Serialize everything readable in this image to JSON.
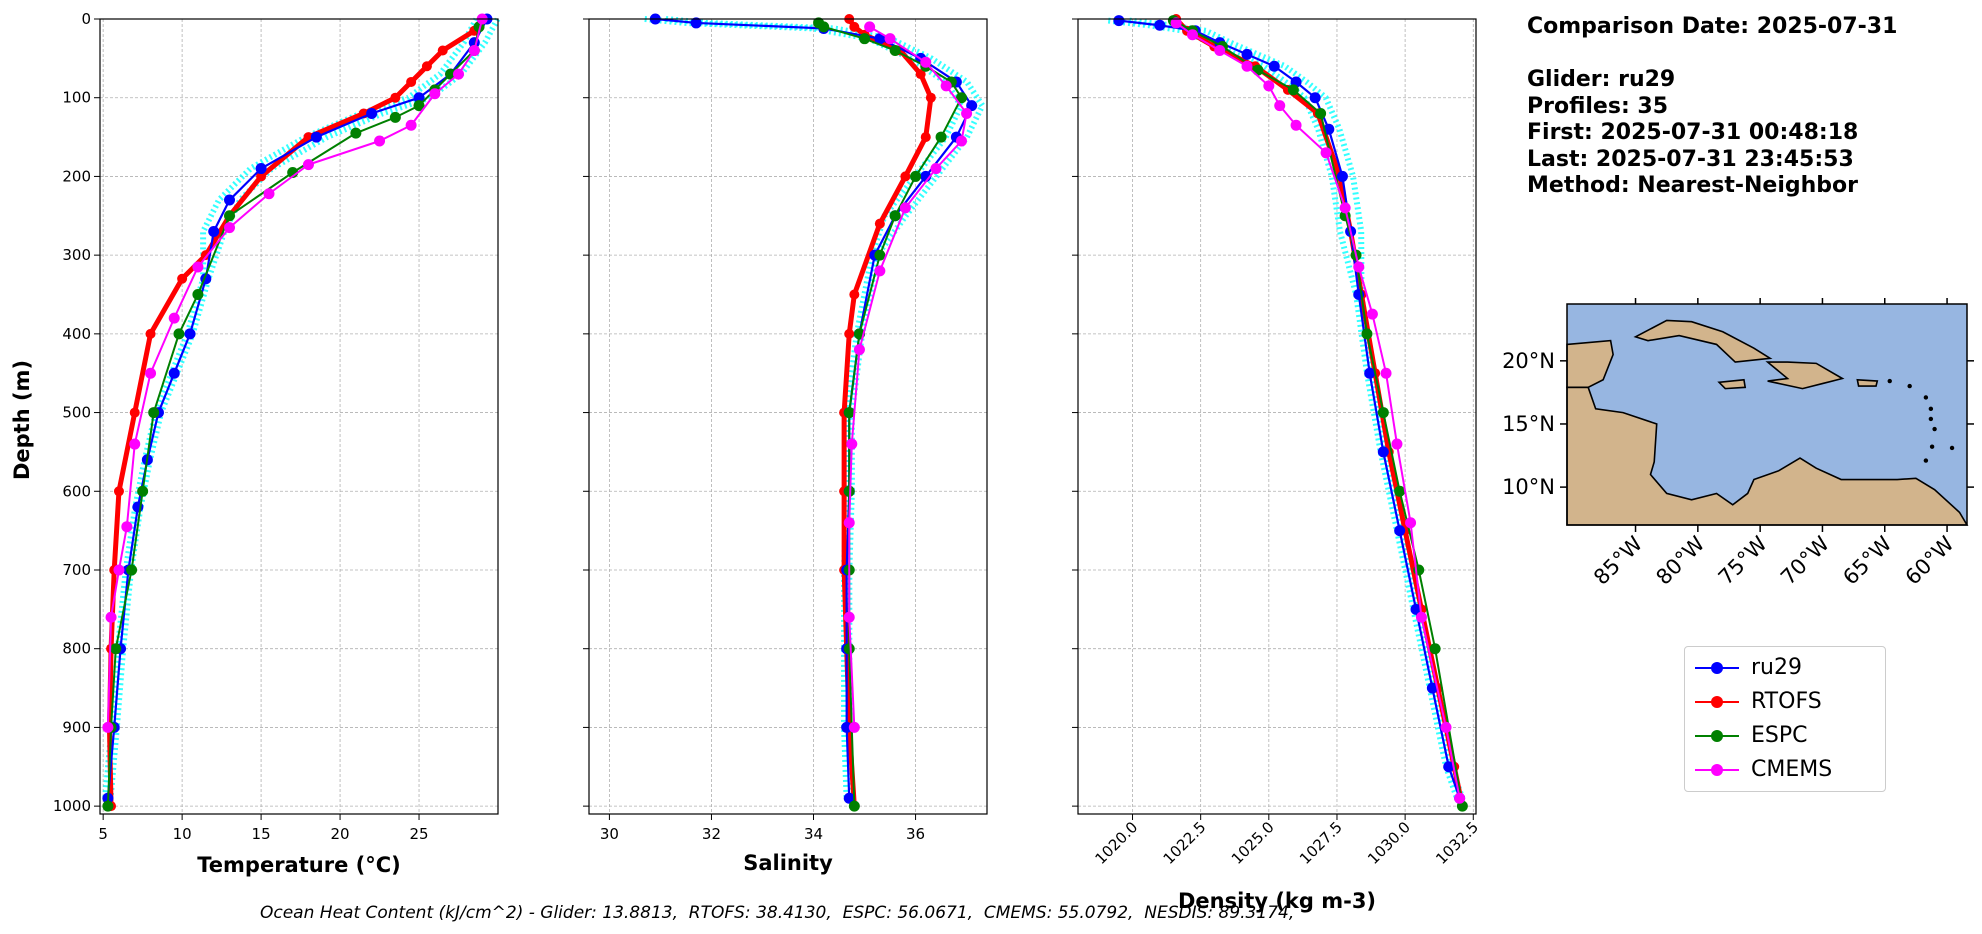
{
  "info": {
    "comparison_date": "Comparison Date: 2025-07-31",
    "glider": "Glider: ru29",
    "profiles": "Profiles: 35",
    "first": "First: 2025-07-31 00:48:18",
    "last": "Last: 2025-07-31 23:45:53",
    "method": "Method: Nearest-Neighbor"
  },
  "footer": "Ocean Heat Content (kJ/cm^2) - Glider: 13.8813,  RTOFS: 38.4130,  ESPC: 56.0671,  CMEMS: 55.0792,  NESDIS: 89.3174,",
  "colors": {
    "ru29": "#0000ff",
    "ru29_profiles": "#00ffff",
    "RTOFS": "#ff0000",
    "ESPC": "#008000",
    "CMEMS": "#ff00ff",
    "ocean": "#97b6e1",
    "land": "#d2b48c",
    "grid": "#b0b0b0"
  },
  "legend": [
    {
      "name": "ru29",
      "color": "#0000ff"
    },
    {
      "name": "RTOFS",
      "color": "#ff0000"
    },
    {
      "name": "ESPC",
      "color": "#008000"
    },
    {
      "name": "CMEMS",
      "color": "#ff00ff"
    }
  ],
  "chart_data": [
    {
      "type": "line",
      "xlabel": "Temperature (°C)",
      "ylabel": "Depth (m)",
      "xlim": [
        4.8,
        30.0
      ],
      "ylim": [
        1010,
        0
      ],
      "xticks": [
        5,
        10,
        15,
        20,
        25
      ],
      "yticks": [
        0,
        100,
        200,
        300,
        400,
        500,
        600,
        700,
        800,
        900,
        1000
      ],
      "grid": true,
      "series": [
        {
          "name": "ru29",
          "points": [
            [
              29.3,
              0
            ],
            [
              28.5,
              30
            ],
            [
              27.0,
              70
            ],
            [
              25.0,
              100
            ],
            [
              22.0,
              120
            ],
            [
              18.5,
              150
            ],
            [
              15.0,
              190
            ],
            [
              13.0,
              230
            ],
            [
              12.0,
              270
            ],
            [
              11.5,
              330
            ],
            [
              10.5,
              400
            ],
            [
              9.5,
              450
            ],
            [
              8.5,
              500
            ],
            [
              7.8,
              560
            ],
            [
              7.2,
              620
            ],
            [
              6.6,
              700
            ],
            [
              6.1,
              800
            ],
            [
              5.7,
              900
            ],
            [
              5.3,
              990
            ]
          ]
        },
        {
          "name": "RTOFS",
          "points": [
            [
              29.0,
              0
            ],
            [
              28.5,
              15
            ],
            [
              26.5,
              40
            ],
            [
              25.5,
              60
            ],
            [
              24.5,
              80
            ],
            [
              23.5,
              100
            ],
            [
              21.5,
              120
            ],
            [
              18.0,
              150
            ],
            [
              15.0,
              200
            ],
            [
              13.0,
              250
            ],
            [
              11.5,
              300
            ],
            [
              10.0,
              330
            ],
            [
              8.0,
              400
            ],
            [
              7.0,
              500
            ],
            [
              6.0,
              600
            ],
            [
              5.7,
              700
            ],
            [
              5.5,
              800
            ],
            [
              5.4,
              900
            ],
            [
              5.5,
              1000
            ]
          ]
        },
        {
          "name": "ESPC",
          "points": [
            [
              28.8,
              10
            ],
            [
              28.5,
              40
            ],
            [
              27.0,
              70
            ],
            [
              26.0,
              90
            ],
            [
              25.0,
              110
            ],
            [
              23.5,
              125
            ],
            [
              21.0,
              145
            ],
            [
              17.0,
              195
            ],
            [
              13.0,
              250
            ],
            [
              11.0,
              350
            ],
            [
              9.8,
              400
            ],
            [
              8.2,
              500
            ],
            [
              7.5,
              600
            ],
            [
              6.8,
              700
            ],
            [
              5.8,
              800
            ],
            [
              5.5,
              900
            ],
            [
              5.3,
              1000
            ]
          ]
        },
        {
          "name": "CMEMS",
          "points": [
            [
              29.0,
              0
            ],
            [
              28.5,
              40
            ],
            [
              27.5,
              70
            ],
            [
              26.0,
              95
            ],
            [
              24.5,
              135
            ],
            [
              22.5,
              155
            ],
            [
              18.0,
              185
            ],
            [
              15.5,
              222
            ],
            [
              13.0,
              265
            ],
            [
              11.0,
              315
            ],
            [
              9.5,
              380
            ],
            [
              8.0,
              450
            ],
            [
              7.0,
              540
            ],
            [
              6.5,
              645
            ],
            [
              6.0,
              700
            ],
            [
              5.5,
              760
            ],
            [
              5.3,
              900
            ]
          ]
        }
      ]
    },
    {
      "type": "line",
      "xlabel": "Salinity",
      "ylim": [
        1010,
        0
      ],
      "xlim": [
        29.6,
        37.4
      ],
      "xticks": [
        30,
        32,
        34,
        36
      ],
      "grid": true,
      "series": [
        {
          "name": "ru29",
          "points": [
            [
              30.9,
              0
            ],
            [
              31.7,
              5
            ],
            [
              34.2,
              12
            ],
            [
              35.3,
              25
            ],
            [
              36.1,
              50
            ],
            [
              36.8,
              80
            ],
            [
              37.1,
              110
            ],
            [
              36.8,
              150
            ],
            [
              36.2,
              200
            ],
            [
              35.6,
              250
            ],
            [
              35.2,
              300
            ],
            [
              34.9,
              400
            ],
            [
              34.7,
              500
            ],
            [
              34.7,
              600
            ],
            [
              34.65,
              700
            ],
            [
              34.65,
              800
            ],
            [
              34.65,
              900
            ],
            [
              34.7,
              990
            ]
          ]
        },
        {
          "name": "RTOFS",
          "points": [
            [
              34.7,
              0
            ],
            [
              34.8,
              10
            ],
            [
              35.0,
              20
            ],
            [
              35.7,
              40
            ],
            [
              36.1,
              70
            ],
            [
              36.3,
              100
            ],
            [
              36.2,
              150
            ],
            [
              35.8,
              200
            ],
            [
              35.3,
              260
            ],
            [
              34.8,
              350
            ],
            [
              34.7,
              400
            ],
            [
              34.6,
              500
            ],
            [
              34.6,
              600
            ],
            [
              34.6,
              700
            ],
            [
              34.65,
              800
            ],
            [
              34.7,
              900
            ],
            [
              34.8,
              1000
            ]
          ]
        },
        {
          "name": "ESPC",
          "points": [
            [
              34.1,
              5
            ],
            [
              34.2,
              10
            ],
            [
              35.0,
              25
            ],
            [
              35.6,
              40
            ],
            [
              36.2,
              60
            ],
            [
              36.7,
              80
            ],
            [
              36.9,
              100
            ],
            [
              36.5,
              150
            ],
            [
              36.0,
              200
            ],
            [
              35.6,
              250
            ],
            [
              35.3,
              300
            ],
            [
              34.9,
              400
            ],
            [
              34.7,
              500
            ],
            [
              34.7,
              600
            ],
            [
              34.7,
              700
            ],
            [
              34.7,
              800
            ],
            [
              34.8,
              1000
            ]
          ]
        },
        {
          "name": "CMEMS",
          "points": [
            [
              35.1,
              10
            ],
            [
              35.5,
              25
            ],
            [
              36.2,
              55
            ],
            [
              36.6,
              85
            ],
            [
              37.0,
              120
            ],
            [
              36.9,
              155
            ],
            [
              36.4,
              190
            ],
            [
              35.8,
              240
            ],
            [
              35.3,
              320
            ],
            [
              34.9,
              420
            ],
            [
              34.75,
              540
            ],
            [
              34.7,
              640
            ],
            [
              34.7,
              760
            ],
            [
              34.8,
              900
            ]
          ]
        }
      ]
    },
    {
      "type": "line",
      "xlabel": "Density (kg m-3)",
      "ylim": [
        1010,
        0
      ],
      "xlim": [
        1018.0,
        1032.6
      ],
      "xticks": [
        "1020.0",
        "1022.5",
        "1025.0",
        "1027.5",
        "1030.0",
        "1032.5"
      ],
      "grid": true,
      "series": [
        {
          "name": "ru29",
          "points": [
            [
              1019.5,
              2
            ],
            [
              1021.0,
              8
            ],
            [
              1022.3,
              15
            ],
            [
              1023.2,
              30
            ],
            [
              1024.2,
              45
            ],
            [
              1025.2,
              60
            ],
            [
              1026.0,
              80
            ],
            [
              1026.7,
              100
            ],
            [
              1027.2,
              140
            ],
            [
              1027.7,
              200
            ],
            [
              1028.0,
              270
            ],
            [
              1028.3,
              350
            ],
            [
              1028.7,
              450
            ],
            [
              1029.2,
              550
            ],
            [
              1029.8,
              650
            ],
            [
              1030.4,
              750
            ],
            [
              1031.0,
              850
            ],
            [
              1031.6,
              950
            ],
            [
              1032.0,
              990
            ]
          ]
        },
        {
          "name": "RTOFS",
          "points": [
            [
              1021.6,
              0
            ],
            [
              1022.0,
              15
            ],
            [
              1023.0,
              35
            ],
            [
              1024.5,
              60
            ],
            [
              1025.7,
              90
            ],
            [
              1026.8,
              120
            ],
            [
              1027.6,
              200
            ],
            [
              1028.0,
              270
            ],
            [
              1028.4,
              350
            ],
            [
              1028.9,
              450
            ],
            [
              1029.4,
              550
            ],
            [
              1030.0,
              650
            ],
            [
              1030.6,
              750
            ],
            [
              1031.2,
              850
            ],
            [
              1031.8,
              950
            ],
            [
              1032.1,
              1000
            ]
          ]
        },
        {
          "name": "ESPC",
          "points": [
            [
              1021.5,
              2
            ],
            [
              1022.2,
              15
            ],
            [
              1023.3,
              35
            ],
            [
              1024.6,
              65
            ],
            [
              1025.9,
              90
            ],
            [
              1026.9,
              120
            ],
            [
              1027.8,
              250
            ],
            [
              1028.2,
              300
            ],
            [
              1028.6,
              400
            ],
            [
              1029.2,
              500
            ],
            [
              1029.8,
              600
            ],
            [
              1030.5,
              700
            ],
            [
              1031.1,
              800
            ],
            [
              1032.1,
              1000
            ]
          ]
        },
        {
          "name": "CMEMS",
          "points": [
            [
              1021.6,
              5
            ],
            [
              1022.2,
              20
            ],
            [
              1023.2,
              40
            ],
            [
              1024.2,
              60
            ],
            [
              1025.0,
              85
            ],
            [
              1025.4,
              110
            ],
            [
              1026.0,
              135
            ],
            [
              1027.1,
              170
            ],
            [
              1027.8,
              240
            ],
            [
              1028.3,
              315
            ],
            [
              1028.8,
              375
            ],
            [
              1029.3,
              450
            ],
            [
              1029.7,
              540
            ],
            [
              1030.2,
              640
            ],
            [
              1030.6,
              760
            ],
            [
              1031.5,
              900
            ],
            [
              1032.0,
              990
            ]
          ]
        }
      ]
    }
  ],
  "map": {
    "lon_ticks": [
      "85°W",
      "80°W",
      "75°W",
      "70°W",
      "65°W",
      "60°W"
    ],
    "lat_ticks": [
      "20°N",
      "15°N",
      "10°N"
    ]
  }
}
